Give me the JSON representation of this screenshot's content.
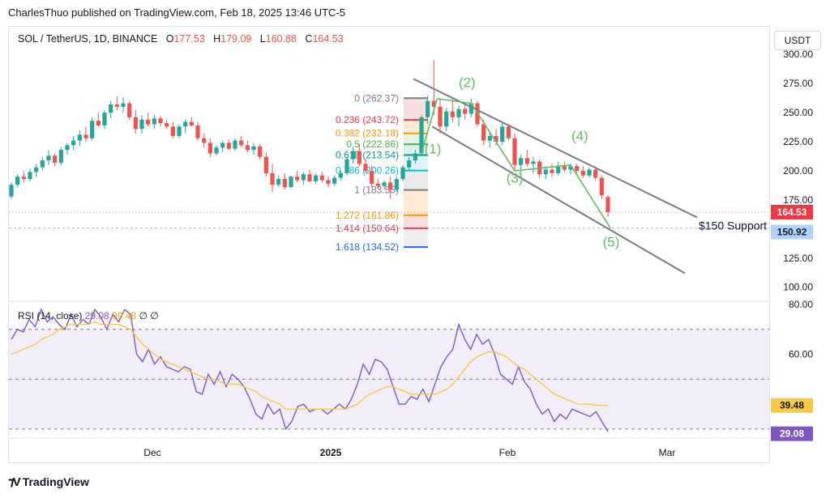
{
  "header": {
    "published": "CharlesThuo published on TradingView.com, Feb 18, 2025 13:46 UTC-5"
  },
  "legend": {
    "symbol": "SOL / TetherUS, 1D, BINANCE",
    "o_label": "O",
    "o": "177.53",
    "h_label": "H",
    "h": "179.09",
    "l_label": "L",
    "l": "160.88",
    "c_label": "C",
    "c": "164.53"
  },
  "currency_button": "USDT",
  "price_badges": {
    "last": "164.53",
    "last_color": "#f23645",
    "support": "150.92",
    "support_color": "#b2d3f7"
  },
  "support_label": "$150 Support",
  "rsi_legend": {
    "label": "RSI (14, close)",
    "rsi": "29.08",
    "ma": "39.48",
    "n1": "∅",
    "n2": "∅",
    "rsi_color": "#7e57c2",
    "ma_color": "#f7c948"
  },
  "rsi_badges": {
    "ma": "39.48",
    "rsi": "29.08"
  },
  "footer": {
    "brand": "TradingView"
  },
  "chart_data": [
    {
      "type": "candlestick",
      "y_ticks": [
        "300.00",
        "275.00",
        "250.00",
        "225.00",
        "200.00",
        "175.00",
        "150.00",
        "125.00",
        "100.00"
      ],
      "ylim": [
        88,
        305
      ],
      "x_ticks": [
        "Dec",
        "2025",
        "Feb",
        "Mar"
      ],
      "colors": {
        "up": "#26a69a",
        "down": "#ef5350"
      },
      "candles": [
        {
          "o": 178,
          "h": 190,
          "l": 176,
          "c": 188
        },
        {
          "o": 188,
          "h": 197,
          "l": 186,
          "c": 195
        },
        {
          "o": 195,
          "h": 200,
          "l": 190,
          "c": 193
        },
        {
          "o": 193,
          "h": 202,
          "l": 191,
          "c": 199
        },
        {
          "o": 199,
          "h": 206,
          "l": 195,
          "c": 203
        },
        {
          "o": 203,
          "h": 212,
          "l": 200,
          "c": 209
        },
        {
          "o": 209,
          "h": 218,
          "l": 205,
          "c": 213
        },
        {
          "o": 213,
          "h": 215,
          "l": 204,
          "c": 207
        },
        {
          "o": 207,
          "h": 220,
          "l": 205,
          "c": 218
        },
        {
          "o": 218,
          "h": 224,
          "l": 214,
          "c": 222
        },
        {
          "o": 222,
          "h": 230,
          "l": 218,
          "c": 226
        },
        {
          "o": 226,
          "h": 235,
          "l": 221,
          "c": 231
        },
        {
          "o": 231,
          "h": 238,
          "l": 225,
          "c": 228
        },
        {
          "o": 228,
          "h": 246,
          "l": 226,
          "c": 243
        },
        {
          "o": 243,
          "h": 250,
          "l": 238,
          "c": 239
        },
        {
          "o": 239,
          "h": 252,
          "l": 236,
          "c": 250
        },
        {
          "o": 250,
          "h": 260,
          "l": 245,
          "c": 257
        },
        {
          "o": 257,
          "h": 264,
          "l": 252,
          "c": 255
        },
        {
          "o": 255,
          "h": 263,
          "l": 250,
          "c": 258
        },
        {
          "o": 258,
          "h": 260,
          "l": 244,
          "c": 246
        },
        {
          "o": 246,
          "h": 252,
          "l": 232,
          "c": 236
        },
        {
          "o": 236,
          "h": 248,
          "l": 232,
          "c": 244
        },
        {
          "o": 244,
          "h": 250,
          "l": 238,
          "c": 240
        },
        {
          "o": 240,
          "h": 248,
          "l": 236,
          "c": 245
        },
        {
          "o": 245,
          "h": 247,
          "l": 238,
          "c": 241
        },
        {
          "o": 241,
          "h": 244,
          "l": 236,
          "c": 238
        },
        {
          "o": 238,
          "h": 242,
          "l": 228,
          "c": 230
        },
        {
          "o": 230,
          "h": 240,
          "l": 228,
          "c": 238
        },
        {
          "o": 238,
          "h": 244,
          "l": 232,
          "c": 242
        },
        {
          "o": 242,
          "h": 246,
          "l": 238,
          "c": 239
        },
        {
          "o": 239,
          "h": 242,
          "l": 226,
          "c": 228
        },
        {
          "o": 228,
          "h": 232,
          "l": 220,
          "c": 224
        },
        {
          "o": 224,
          "h": 228,
          "l": 212,
          "c": 215
        },
        {
          "o": 215,
          "h": 222,
          "l": 213,
          "c": 220
        },
        {
          "o": 220,
          "h": 226,
          "l": 216,
          "c": 224
        },
        {
          "o": 224,
          "h": 227,
          "l": 218,
          "c": 219
        },
        {
          "o": 219,
          "h": 228,
          "l": 217,
          "c": 226
        },
        {
          "o": 226,
          "h": 230,
          "l": 220,
          "c": 222
        },
        {
          "o": 222,
          "h": 226,
          "l": 216,
          "c": 218
        },
        {
          "o": 218,
          "h": 224,
          "l": 214,
          "c": 221
        },
        {
          "o": 221,
          "h": 223,
          "l": 210,
          "c": 212
        },
        {
          "o": 212,
          "h": 216,
          "l": 195,
          "c": 198
        },
        {
          "o": 198,
          "h": 206,
          "l": 182,
          "c": 188
        },
        {
          "o": 188,
          "h": 196,
          "l": 186,
          "c": 193
        },
        {
          "o": 193,
          "h": 198,
          "l": 184,
          "c": 186
        },
        {
          "o": 186,
          "h": 196,
          "l": 185,
          "c": 195
        },
        {
          "o": 195,
          "h": 200,
          "l": 190,
          "c": 192
        },
        {
          "o": 192,
          "h": 199,
          "l": 188,
          "c": 197
        },
        {
          "o": 197,
          "h": 201,
          "l": 190,
          "c": 191
        },
        {
          "o": 191,
          "h": 198,
          "l": 189,
          "c": 196
        },
        {
          "o": 196,
          "h": 199,
          "l": 190,
          "c": 192
        },
        {
          "o": 192,
          "h": 195,
          "l": 186,
          "c": 189
        },
        {
          "o": 189,
          "h": 196,
          "l": 187,
          "c": 194
        },
        {
          "o": 194,
          "h": 200,
          "l": 192,
          "c": 198
        },
        {
          "o": 198,
          "h": 212,
          "l": 196,
          "c": 210
        },
        {
          "o": 210,
          "h": 220,
          "l": 206,
          "c": 217
        },
        {
          "o": 217,
          "h": 223,
          "l": 204,
          "c": 206
        },
        {
          "o": 206,
          "h": 210,
          "l": 198,
          "c": 200
        },
        {
          "o": 200,
          "h": 204,
          "l": 186,
          "c": 189
        },
        {
          "o": 189,
          "h": 193,
          "l": 184,
          "c": 187
        },
        {
          "o": 187,
          "h": 192,
          "l": 184,
          "c": 190
        },
        {
          "o": 190,
          "h": 195,
          "l": 176,
          "c": 184
        },
        {
          "o": 184,
          "h": 195,
          "l": 182,
          "c": 193
        },
        {
          "o": 193,
          "h": 205,
          "l": 191,
          "c": 203
        },
        {
          "o": 203,
          "h": 212,
          "l": 200,
          "c": 209
        },
        {
          "o": 209,
          "h": 218,
          "l": 206,
          "c": 215
        },
        {
          "o": 215,
          "h": 248,
          "l": 214,
          "c": 246
        },
        {
          "o": 246,
          "h": 265,
          "l": 240,
          "c": 260
        },
        {
          "o": 260,
          "h": 295,
          "l": 248,
          "c": 255
        },
        {
          "o": 255,
          "h": 262,
          "l": 232,
          "c": 238
        },
        {
          "o": 238,
          "h": 254,
          "l": 234,
          "c": 251
        },
        {
          "o": 251,
          "h": 262,
          "l": 242,
          "c": 246
        },
        {
          "o": 246,
          "h": 256,
          "l": 238,
          "c": 253
        },
        {
          "o": 253,
          "h": 258,
          "l": 244,
          "c": 249
        },
        {
          "o": 249,
          "h": 262,
          "l": 246,
          "c": 258
        },
        {
          "o": 258,
          "h": 260,
          "l": 238,
          "c": 240
        },
        {
          "o": 240,
          "h": 244,
          "l": 222,
          "c": 226
        },
        {
          "o": 226,
          "h": 234,
          "l": 220,
          "c": 230
        },
        {
          "o": 230,
          "h": 236,
          "l": 222,
          "c": 225
        },
        {
          "o": 225,
          "h": 242,
          "l": 222,
          "c": 238
        },
        {
          "o": 238,
          "h": 240,
          "l": 226,
          "c": 228
        },
        {
          "o": 228,
          "h": 232,
          "l": 200,
          "c": 205
        },
        {
          "o": 205,
          "h": 214,
          "l": 196,
          "c": 211
        },
        {
          "o": 211,
          "h": 218,
          "l": 204,
          "c": 206
        },
        {
          "o": 206,
          "h": 212,
          "l": 198,
          "c": 208
        },
        {
          "o": 208,
          "h": 210,
          "l": 194,
          "c": 197
        },
        {
          "o": 197,
          "h": 204,
          "l": 193,
          "c": 201
        },
        {
          "o": 201,
          "h": 206,
          "l": 195,
          "c": 198
        },
        {
          "o": 198,
          "h": 208,
          "l": 196,
          "c": 204
        },
        {
          "o": 204,
          "h": 208,
          "l": 199,
          "c": 201
        },
        {
          "o": 201,
          "h": 206,
          "l": 197,
          "c": 204
        },
        {
          "o": 204,
          "h": 206,
          "l": 198,
          "c": 200
        },
        {
          "o": 200,
          "h": 204,
          "l": 194,
          "c": 196
        },
        {
          "o": 196,
          "h": 203,
          "l": 194,
          "c": 201
        },
        {
          "o": 201,
          "h": 204,
          "l": 192,
          "c": 194
        },
        {
          "o": 194,
          "h": 196,
          "l": 176,
          "c": 179
        },
        {
          "o": 177.53,
          "h": 179.09,
          "l": 160.88,
          "c": 164.53
        }
      ],
      "fib_levels": [
        {
          "label": "0 (262.37)",
          "price": 262.37,
          "color": "#787b86"
        },
        {
          "label": "0.236 (243.72)",
          "price": 243.72,
          "color": "#f23645"
        },
        {
          "label": "0.382 (232.18)",
          "price": 232.18,
          "color": "#ff9800"
        },
        {
          "label": "0.5 (222.86)",
          "price": 222.86,
          "color": "#4caf50"
        },
        {
          "label": "0.618 (213.54)",
          "price": 213.54,
          "color": "#089981"
        },
        {
          "label": "0.786 (200.26)",
          "price": 200.26,
          "color": "#00bcd4"
        },
        {
          "label": "1 (183.55)",
          "price": 183.55,
          "color": "#787b86"
        },
        {
          "label": "1.272 (161.86)",
          "price": 161.86,
          "color": "#ff9800"
        },
        {
          "label": "1.414 (150.64)",
          "price": 150.64,
          "color": "#f23645"
        },
        {
          "label": "1.618 (134.52)",
          "price": 134.52,
          "color": "#2962ff"
        }
      ],
      "wave_labels": [
        "(1)",
        "(2)",
        "(3)",
        "(4)",
        "(5)"
      ],
      "wave_color": "#66bb6a",
      "channel_color": "#787b86",
      "last_price": 164.53,
      "support_price": 150.92
    },
    {
      "type": "line",
      "title": "RSI (14, close)",
      "y_ticks": [
        "80.00",
        "60.00"
      ],
      "ylim": [
        28,
        80
      ],
      "upper_band": 70,
      "mid_band": 50,
      "lower_band": 30,
      "band_color": "#7e57c2",
      "series": [
        {
          "name": "RSI",
          "color": "#7e57c2",
          "values": [
            66,
            70,
            69,
            74,
            71,
            78,
            73,
            75,
            72,
            70,
            76,
            71,
            74,
            72,
            78,
            75,
            70,
            76,
            73,
            78,
            76,
            60,
            57,
            62,
            56,
            59,
            55,
            54,
            53,
            55,
            54,
            45,
            44,
            52,
            48,
            53,
            47,
            52,
            50,
            47,
            42,
            36,
            34,
            40,
            36,
            38,
            30,
            33,
            39,
            40,
            37,
            38,
            38,
            36,
            38,
            40,
            38,
            42,
            48,
            56,
            52,
            58,
            57,
            54,
            47,
            40,
            40,
            43,
            42,
            46,
            41,
            48,
            55,
            59,
            62,
            72,
            66,
            62,
            68,
            64,
            66,
            60,
            52,
            50,
            48,
            55,
            49,
            46,
            40,
            36,
            38,
            33,
            36,
            34,
            38,
            37,
            36,
            35,
            37,
            33,
            29
          ]
        },
        {
          "name": "RSI-based MA",
          "color": "#f7c948",
          "values": [
            60,
            61,
            62,
            63,
            64,
            66,
            67,
            68,
            70,
            71,
            72,
            72,
            72,
            72,
            73,
            72,
            72,
            72,
            72,
            71,
            70,
            67,
            64,
            62,
            60,
            58,
            57,
            56,
            55,
            54,
            53,
            52,
            51,
            50,
            50,
            49,
            48,
            48,
            48,
            47,
            46,
            45,
            43,
            42,
            41,
            40,
            38,
            38,
            38,
            38,
            38,
            38,
            38,
            38,
            38,
            38,
            38,
            39,
            40,
            42,
            44,
            45,
            46,
            47,
            47,
            46,
            45,
            44,
            44,
            44,
            44,
            44,
            45,
            46,
            48,
            51,
            54,
            57,
            59,
            60,
            61,
            61,
            60,
            59,
            57,
            55,
            54,
            52,
            50,
            48,
            46,
            44,
            43,
            42,
            41,
            40,
            40,
            40,
            39.5,
            39.5,
            39.48
          ]
        }
      ]
    }
  ]
}
